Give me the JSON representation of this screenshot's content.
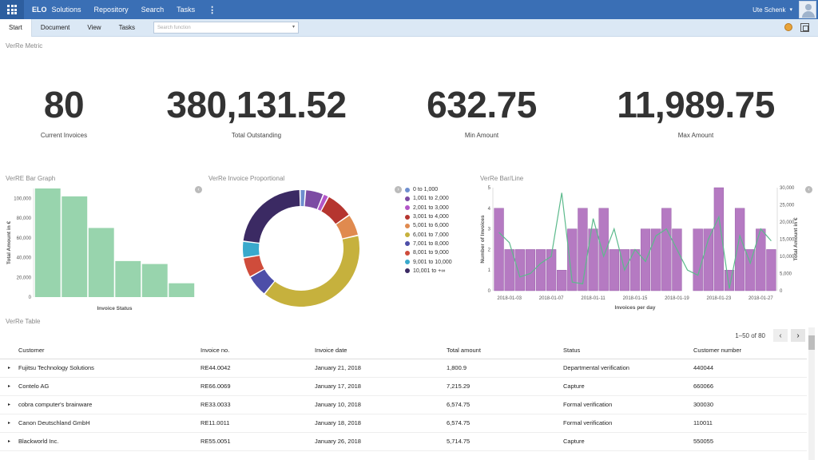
{
  "header": {
    "brand": "ELO",
    "nav": [
      "Solutions",
      "Repository",
      "Search",
      "Tasks"
    ],
    "more": "⋮",
    "user": "Ute Schenk",
    "caret": "▾"
  },
  "ribbon": {
    "tabs": [
      "Start",
      "Document",
      "View",
      "Tasks"
    ],
    "search_placeholder": "Search function",
    "dd": "▾"
  },
  "metrics": {
    "title": "VerRe Metric",
    "items": [
      {
        "value": "80",
        "label": "Current Invoices"
      },
      {
        "value": "380,131.52",
        "label": "Total Outstanding"
      },
      {
        "value": "632.75",
        "label": "Min Amount"
      },
      {
        "value": "11,989.75",
        "label": "Max Amount"
      }
    ]
  },
  "arrows": {
    "left": "‹",
    "right": "›"
  },
  "chart_data": [
    {
      "type": "bar",
      "title": "VerRE Bar Graph",
      "xlabel": "Invoice Status",
      "ylabel": "Total Amount in €",
      "ylim": [
        0,
        110000
      ],
      "yticks": [
        "0",
        "20,000",
        "40,000",
        "60,000",
        "80,000",
        "100,000"
      ],
      "ytick_values": [
        0,
        20000,
        40000,
        60000,
        80000,
        100000
      ],
      "values": [
        110000,
        102000,
        70000,
        36500,
        33500,
        14000
      ],
      "color": "#98d4ad"
    },
    {
      "type": "pie",
      "title": "VerRe Invoice Proportional",
      "labels": [
        "0 to 1,000",
        "1,001 to 2,000",
        "2,001 to 3,000",
        "3,001 to 4,000",
        "5,001 to 6,000",
        "6,001 to 7,000",
        "7,001 to 8,000",
        "8,001 to 9,000",
        "9,001 to 10,000",
        "10,001 to +∞"
      ],
      "values": [
        1.5,
        5.0,
        1.5,
        7.5,
        6.0,
        39.0,
        6.0,
        5.5,
        4.5,
        22.5
      ],
      "colors": [
        "#6e8ecf",
        "#7c4ba3",
        "#b356c8",
        "#b5352f",
        "#e08a4f",
        "#c6b13d",
        "#4d4ea8",
        "#cf4c3b",
        "#39a9cc",
        "#3b2a63"
      ]
    },
    {
      "type": "bar+line",
      "title": "VerRe Bar/Line",
      "xlabel": "Invoices per day",
      "ylabel": "Number of Invoices",
      "y2label": "Total Amount in €",
      "ylim": [
        0,
        5
      ],
      "y2lim": [
        0,
        30000
      ],
      "yticks": [
        "0",
        "1",
        "2",
        "3",
        "4",
        "5"
      ],
      "y2ticks": [
        "0",
        "5,000",
        "10,000",
        "15,000",
        "20,000",
        "25,000",
        "30,000"
      ],
      "xticks": [
        "2018-01-03",
        "2018-01-07",
        "2018-01-11",
        "2018-01-15",
        "2018-01-19",
        "2018-01-23",
        "2018-01-27"
      ],
      "xtick_indices": [
        1,
        5,
        9,
        13,
        17,
        21,
        25
      ],
      "bars": [
        4,
        2,
        2,
        2,
        2,
        2,
        1,
        3,
        4,
        3,
        4,
        2,
        2,
        2,
        3,
        3,
        4,
        3,
        0,
        3,
        3,
        5,
        1,
        4,
        2,
        3,
        2
      ],
      "line": [
        17000,
        14000,
        4000,
        5000,
        8000,
        10000,
        28500,
        2500,
        2000,
        21000,
        10000,
        18000,
        6000,
        12000,
        8500,
        16000,
        18000,
        12000,
        6000,
        4500,
        15000,
        21500,
        600,
        16000,
        8000,
        18000,
        14500
      ],
      "bar_color": "#b57ac2",
      "line_color": "#5cba8c"
    }
  ],
  "table": {
    "title": "VerRe Table",
    "pager": "1–50 of 80",
    "prev": "‹",
    "next": "›",
    "columns": [
      "Customer",
      "Invoice no.",
      "Invoice date",
      "Total amount",
      "Status",
      "Customer number"
    ],
    "rows": [
      [
        "Fujitsu Technology Solutions",
        "RE44.0042",
        "January 21, 2018",
        "1,800.9",
        "Departmental verification",
        "440044"
      ],
      [
        "Contelo AG",
        "RE66.0069",
        "January 17, 2018",
        "7,215.29",
        "Capture",
        "660066"
      ],
      [
        "cobra computer's brainware",
        "RE33.0033",
        "January 10, 2018",
        "6,574.75",
        "Formal verification",
        "300030"
      ],
      [
        "Canon Deutschland GmbH",
        "RE11.0011",
        "January 18, 2018",
        "6,574.75",
        "Formal verification",
        "110011"
      ],
      [
        "Blackworld Inc.",
        "RE55.0051",
        "January 26, 2018",
        "5,714.75",
        "Capture",
        "550055"
      ]
    ],
    "expand": "▸"
  }
}
